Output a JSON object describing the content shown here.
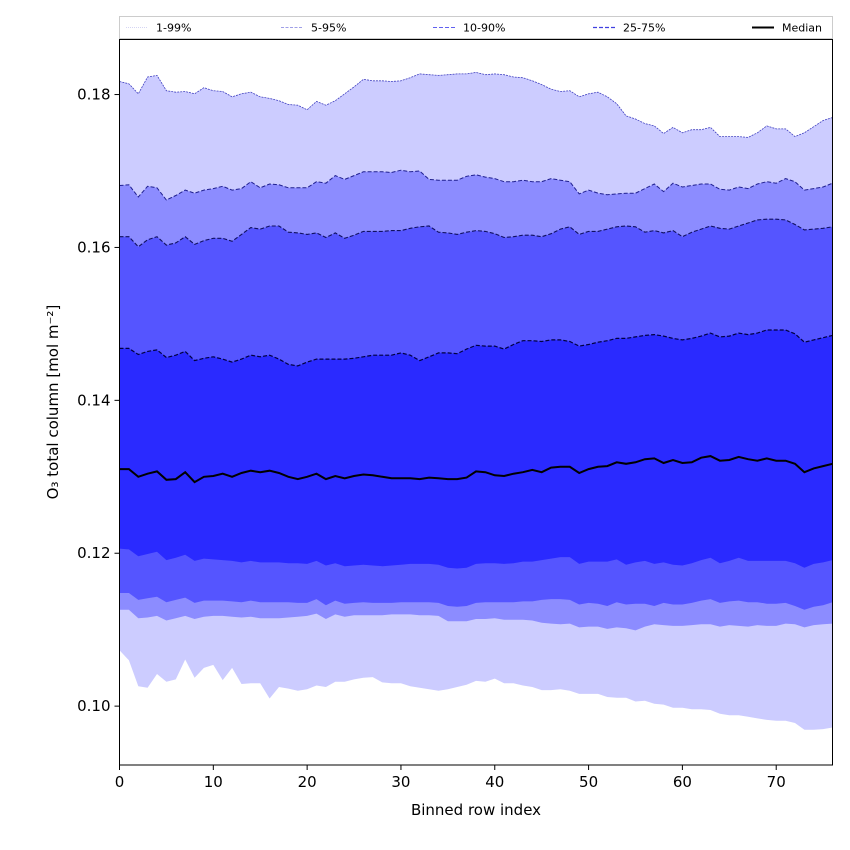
{
  "chart_data": {
    "type": "area",
    "title": "",
    "xlabel": "Binned row index",
    "ylabel": "O₃ total column [mol m⁻²]",
    "xlim": [
      0,
      76
    ],
    "ylim": [
      0.0923,
      0.1872
    ],
    "xticks": [
      0,
      10,
      20,
      30,
      40,
      50,
      60,
      70
    ],
    "xtick_labels": [
      "0",
      "10",
      "20",
      "30",
      "40",
      "50",
      "60",
      "70"
    ],
    "yticks": [
      0.1,
      0.12,
      0.14,
      0.16,
      0.18
    ],
    "ytick_labels": [
      "0.10",
      "0.12",
      "0.14",
      "0.16",
      "0.18"
    ],
    "grid": false,
    "legend_position": "top",
    "legend": [
      {
        "label": "1-99%",
        "style": "dotted",
        "color": "#ccccff"
      },
      {
        "label": "5-95%",
        "style": "dashed",
        "color": "#8c8cff"
      },
      {
        "label": "10-90%",
        "style": "dashed",
        "color": "#5555ff"
      },
      {
        "label": "25-75%",
        "style": "dashed",
        "color": "#2a2aff"
      },
      {
        "label": "Median",
        "style": "solid",
        "color": "#000000"
      }
    ],
    "colors": {
      "band_1_99": "#ccccff",
      "band_5_95": "#8c8cff",
      "band_10_90": "#5555ff",
      "band_25_75": "#2a2aff",
      "median": "#000000",
      "edge_1_99": "#4040c0",
      "edge_5_95": "#202090",
      "edge_10_90": "#101060",
      "edge_25_75": "#000040"
    },
    "x": [
      0,
      1,
      2,
      3,
      4,
      5,
      6,
      7,
      8,
      9,
      10,
      11,
      12,
      13,
      14,
      15,
      16,
      17,
      18,
      19,
      20,
      21,
      22,
      23,
      24,
      25,
      26,
      27,
      28,
      29,
      30,
      31,
      32,
      33,
      34,
      35,
      36,
      37,
      38,
      39,
      40,
      41,
      42,
      43,
      44,
      45,
      46,
      47,
      48,
      49,
      50,
      51,
      52,
      53,
      54,
      55,
      56,
      57,
      58,
      59,
      60,
      61,
      62,
      63,
      64,
      65,
      66,
      67,
      68,
      69,
      70,
      71,
      72,
      73,
      74,
      75,
      76
    ],
    "series": [
      {
        "name": "p99",
        "values": [
          0.1817,
          0.1814,
          0.1801,
          0.1823,
          0.1825,
          0.1805,
          0.1803,
          0.1804,
          0.1801,
          0.1809,
          0.1805,
          0.1804,
          0.1797,
          0.1801,
          0.1803,
          0.1797,
          0.1795,
          0.1792,
          0.1787,
          0.1786,
          0.178,
          0.1791,
          0.1786,
          0.1792,
          0.1801,
          0.181,
          0.182,
          0.1818,
          0.1818,
          0.1817,
          0.1818,
          0.1822,
          0.1827,
          0.1826,
          0.1825,
          0.1826,
          0.1827,
          0.1827,
          0.1829,
          0.1826,
          0.1827,
          0.1826,
          0.1823,
          0.1822,
          0.1818,
          0.1813,
          0.1807,
          0.1804,
          0.1805,
          0.1797,
          0.1801,
          0.1803,
          0.1797,
          0.1788,
          0.1772,
          0.1768,
          0.1762,
          0.1759,
          0.1749,
          0.1757,
          0.175,
          0.1754,
          0.1754,
          0.1757,
          0.1745,
          0.1745,
          0.1745,
          0.1744,
          0.175,
          0.1759,
          0.1755,
          0.1755,
          0.1745,
          0.175,
          0.1758,
          0.1766,
          0.177
        ]
      },
      {
        "name": "p95",
        "values": [
          0.1681,
          0.1682,
          0.1666,
          0.168,
          0.1678,
          0.1662,
          0.1668,
          0.1675,
          0.1671,
          0.1675,
          0.1677,
          0.168,
          0.1675,
          0.1677,
          0.1686,
          0.1678,
          0.1683,
          0.1682,
          0.1678,
          0.1678,
          0.1678,
          0.1686,
          0.1684,
          0.1694,
          0.1689,
          0.1694,
          0.1699,
          0.1699,
          0.1699,
          0.1698,
          0.1701,
          0.1699,
          0.17,
          0.1689,
          0.1688,
          0.1688,
          0.1688,
          0.1693,
          0.1695,
          0.1692,
          0.169,
          0.1686,
          0.1686,
          0.1688,
          0.1686,
          0.1686,
          0.169,
          0.1688,
          0.1686,
          0.167,
          0.1675,
          0.1671,
          0.1669,
          0.167,
          0.1671,
          0.1671,
          0.1677,
          0.1683,
          0.1673,
          0.1684,
          0.1679,
          0.1681,
          0.1683,
          0.1683,
          0.1676,
          0.1675,
          0.1679,
          0.1677,
          0.1683,
          0.1686,
          0.1684,
          0.169,
          0.1686,
          0.1675,
          0.1677,
          0.1679,
          0.1684
        ]
      },
      {
        "name": "p90",
        "values": [
          0.1614,
          0.1614,
          0.1601,
          0.161,
          0.1614,
          0.1603,
          0.1606,
          0.1614,
          0.1604,
          0.1609,
          0.1612,
          0.1612,
          0.1608,
          0.1617,
          0.1626,
          0.1624,
          0.1628,
          0.1628,
          0.162,
          0.1619,
          0.1617,
          0.1619,
          0.1613,
          0.1619,
          0.1612,
          0.1616,
          0.1621,
          0.1621,
          0.1621,
          0.1622,
          0.1622,
          0.1625,
          0.1627,
          0.1628,
          0.162,
          0.1619,
          0.1617,
          0.162,
          0.1622,
          0.1621,
          0.1618,
          0.1613,
          0.1614,
          0.1616,
          0.1616,
          0.1614,
          0.1618,
          0.1624,
          0.1627,
          0.1617,
          0.1621,
          0.1621,
          0.1624,
          0.1627,
          0.1628,
          0.1627,
          0.162,
          0.1622,
          0.1619,
          0.1622,
          0.1614,
          0.162,
          0.1624,
          0.1628,
          0.1625,
          0.1624,
          0.1628,
          0.1632,
          0.1636,
          0.1637,
          0.1637,
          0.1636,
          0.163,
          0.1623,
          0.1624,
          0.1625,
          0.1627
        ]
      },
      {
        "name": "p75",
        "values": [
          0.1468,
          0.1468,
          0.146,
          0.1464,
          0.1466,
          0.1456,
          0.1459,
          0.1464,
          0.1452,
          0.1455,
          0.1457,
          0.1454,
          0.145,
          0.1454,
          0.1459,
          0.1457,
          0.1459,
          0.1454,
          0.1447,
          0.1445,
          0.145,
          0.1454,
          0.1454,
          0.1454,
          0.1454,
          0.1455,
          0.1457,
          0.1459,
          0.1459,
          0.1459,
          0.1462,
          0.1459,
          0.1452,
          0.1457,
          0.1462,
          0.1462,
          0.1461,
          0.1467,
          0.1472,
          0.1471,
          0.1471,
          0.1467,
          0.1473,
          0.1478,
          0.1478,
          0.1477,
          0.1479,
          0.1479,
          0.1477,
          0.1471,
          0.1473,
          0.1476,
          0.1478,
          0.1481,
          0.1481,
          0.1483,
          0.1485,
          0.1486,
          0.1484,
          0.1481,
          0.1479,
          0.1481,
          0.1484,
          0.1488,
          0.1483,
          0.1484,
          0.1488,
          0.1486,
          0.1488,
          0.1492,
          0.1492,
          0.1492,
          0.1487,
          0.1476,
          0.1479,
          0.1482,
          0.1485
        ]
      },
      {
        "name": "median",
        "values": [
          0.131,
          0.131,
          0.13,
          0.1304,
          0.1307,
          0.1296,
          0.1297,
          0.1306,
          0.1293,
          0.13,
          0.1301,
          0.1304,
          0.13,
          0.1305,
          0.1308,
          0.1306,
          0.1308,
          0.1305,
          0.13,
          0.1297,
          0.13,
          0.1304,
          0.1297,
          0.1301,
          0.1298,
          0.1301,
          0.1303,
          0.1302,
          0.13,
          0.1298,
          0.1298,
          0.1298,
          0.1297,
          0.1299,
          0.1298,
          0.1297,
          0.1297,
          0.1299,
          0.1307,
          0.1306,
          0.1302,
          0.1301,
          0.1304,
          0.1306,
          0.1309,
          0.1306,
          0.1312,
          0.1313,
          0.1313,
          0.1305,
          0.131,
          0.1313,
          0.1314,
          0.1319,
          0.1317,
          0.1319,
          0.1323,
          0.1324,
          0.1318,
          0.1322,
          0.1318,
          0.1319,
          0.1325,
          0.1327,
          0.1321,
          0.1322,
          0.1326,
          0.1323,
          0.1321,
          0.1324,
          0.1321,
          0.1321,
          0.1317,
          0.1306,
          0.1311,
          0.1314,
          0.1317
        ]
      },
      {
        "name": "p25",
        "values": [
          0.1206,
          0.1205,
          0.1196,
          0.1199,
          0.1202,
          0.1191,
          0.1194,
          0.1198,
          0.119,
          0.1193,
          0.1192,
          0.1191,
          0.119,
          0.1188,
          0.119,
          0.1188,
          0.1188,
          0.1188,
          0.1187,
          0.1187,
          0.1186,
          0.119,
          0.1184,
          0.1187,
          0.1183,
          0.1184,
          0.1185,
          0.1184,
          0.1183,
          0.1184,
          0.1185,
          0.1186,
          0.1186,
          0.1186,
          0.1185,
          0.1181,
          0.118,
          0.1181,
          0.1186,
          0.1187,
          0.1187,
          0.1186,
          0.1187,
          0.1189,
          0.1189,
          0.1191,
          0.1193,
          0.1195,
          0.1195,
          0.1186,
          0.1189,
          0.1189,
          0.1189,
          0.1192,
          0.1185,
          0.1188,
          0.119,
          0.1186,
          0.1188,
          0.1185,
          0.1184,
          0.1187,
          0.1191,
          0.1194,
          0.1187,
          0.119,
          0.1194,
          0.119,
          0.119,
          0.119,
          0.119,
          0.119,
          0.1187,
          0.1181,
          0.1186,
          0.1188,
          0.1191
        ]
      },
      {
        "name": "p10",
        "values": [
          0.1148,
          0.1148,
          0.1139,
          0.1141,
          0.1143,
          0.1136,
          0.1139,
          0.1142,
          0.1135,
          0.1138,
          0.1138,
          0.1138,
          0.1137,
          0.1136,
          0.1138,
          0.1136,
          0.1136,
          0.1136,
          0.1136,
          0.1135,
          0.1135,
          0.114,
          0.1132,
          0.1138,
          0.1134,
          0.1135,
          0.1136,
          0.1135,
          0.1135,
          0.1135,
          0.1136,
          0.1136,
          0.1136,
          0.1136,
          0.1135,
          0.1131,
          0.113,
          0.1131,
          0.1135,
          0.1136,
          0.1136,
          0.1136,
          0.1136,
          0.1137,
          0.1137,
          0.1139,
          0.114,
          0.114,
          0.1139,
          0.1133,
          0.1135,
          0.1134,
          0.1131,
          0.1136,
          0.1133,
          0.1134,
          0.1134,
          0.1131,
          0.1135,
          0.1133,
          0.1133,
          0.1135,
          0.1138,
          0.114,
          0.1135,
          0.1137,
          0.1138,
          0.1136,
          0.1136,
          0.1134,
          0.1134,
          0.1135,
          0.1131,
          0.1126,
          0.113,
          0.1132,
          0.1136
        ]
      },
      {
        "name": "p5",
        "values": [
          0.1126,
          0.1126,
          0.1115,
          0.1116,
          0.1118,
          0.1112,
          0.1115,
          0.1118,
          0.1114,
          0.1117,
          0.1118,
          0.1118,
          0.1117,
          0.1116,
          0.1117,
          0.1115,
          0.1115,
          0.1115,
          0.1116,
          0.1117,
          0.1118,
          0.1121,
          0.1114,
          0.112,
          0.1117,
          0.1119,
          0.1119,
          0.1119,
          0.1119,
          0.112,
          0.112,
          0.112,
          0.1119,
          0.1119,
          0.1118,
          0.1111,
          0.1111,
          0.1111,
          0.1114,
          0.1114,
          0.1115,
          0.1113,
          0.1113,
          0.1113,
          0.1112,
          0.1109,
          0.1108,
          0.1107,
          0.1108,
          0.1103,
          0.1104,
          0.1104,
          0.1101,
          0.1103,
          0.1102,
          0.1099,
          0.1104,
          0.1107,
          0.1106,
          0.1105,
          0.1105,
          0.1106,
          0.1107,
          0.1107,
          0.1104,
          0.1106,
          0.1105,
          0.1104,
          0.1106,
          0.1105,
          0.1105,
          0.1108,
          0.1107,
          0.1103,
          0.1106,
          0.1107,
          0.1108
        ]
      },
      {
        "name": "p1",
        "values": [
          0.1073,
          0.106,
          0.1026,
          0.1024,
          0.1042,
          0.1032,
          0.1035,
          0.1061,
          0.1037,
          0.105,
          0.1054,
          0.1034,
          0.105,
          0.1029,
          0.103,
          0.103,
          0.101,
          0.1025,
          0.1023,
          0.102,
          0.1022,
          0.1027,
          0.1025,
          0.1032,
          0.1032,
          0.1035,
          0.1037,
          0.1038,
          0.1031,
          0.103,
          0.103,
          0.1026,
          0.1024,
          0.1022,
          0.102,
          0.1022,
          0.1025,
          0.1028,
          0.1033,
          0.1032,
          0.1036,
          0.103,
          0.103,
          0.1027,
          0.1025,
          0.1021,
          0.1021,
          0.1022,
          0.102,
          0.1016,
          0.1016,
          0.1016,
          0.1012,
          0.1011,
          0.1011,
          0.1006,
          0.1007,
          0.1003,
          0.1002,
          0.0998,
          0.0998,
          0.0996,
          0.0996,
          0.0995,
          0.099,
          0.0988,
          0.0988,
          0.0986,
          0.0984,
          0.0982,
          0.0981,
          0.0981,
          0.0978,
          0.0969,
          0.0969,
          0.097,
          0.0972
        ]
      }
    ]
  }
}
